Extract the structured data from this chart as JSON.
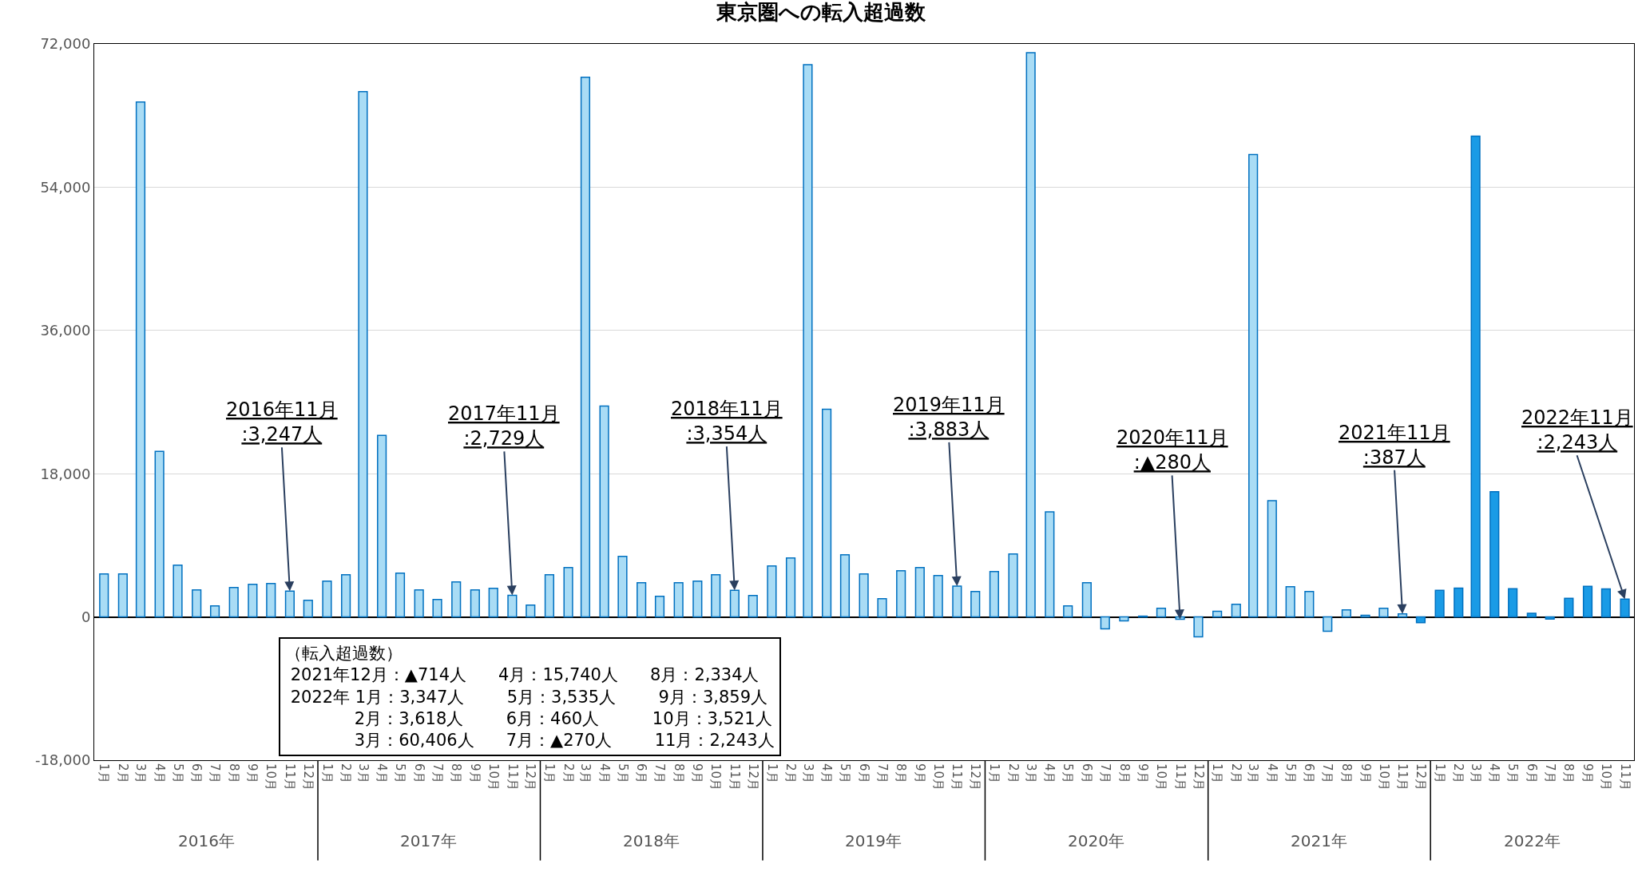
{
  "chart_data": {
    "type": "bar",
    "title": "東京圏への転入超過数",
    "x": [
      "2016-01",
      "2016-02",
      "2016-03",
      "2016-04",
      "2016-05",
      "2016-06",
      "2016-07",
      "2016-08",
      "2016-09",
      "2016-10",
      "2016-11",
      "2016-12",
      "2017-01",
      "2017-02",
      "2017-03",
      "2017-04",
      "2017-05",
      "2017-06",
      "2017-07",
      "2017-08",
      "2017-09",
      "2017-10",
      "2017-11",
      "2017-12",
      "2018-01",
      "2018-02",
      "2018-03",
      "2018-04",
      "2018-05",
      "2018-06",
      "2018-07",
      "2018-08",
      "2018-09",
      "2018-10",
      "2018-11",
      "2018-12",
      "2019-01",
      "2019-02",
      "2019-03",
      "2019-04",
      "2019-05",
      "2019-06",
      "2019-07",
      "2019-08",
      "2019-09",
      "2019-10",
      "2019-11",
      "2019-12",
      "2020-01",
      "2020-02",
      "2020-03",
      "2020-04",
      "2020-05",
      "2020-06",
      "2020-07",
      "2020-08",
      "2020-09",
      "2020-10",
      "2020-11",
      "2020-12",
      "2021-01",
      "2021-02",
      "2021-03",
      "2021-04",
      "2021-05",
      "2021-06",
      "2021-07",
      "2021-08",
      "2021-09",
      "2021-10",
      "2021-11",
      "2021-12",
      "2022-01",
      "2022-02",
      "2022-03",
      "2022-04",
      "2022-05",
      "2022-06",
      "2022-07",
      "2022-08",
      "2022-09",
      "2022-10",
      "2022-11"
    ],
    "values": [
      5400,
      5400,
      64700,
      20800,
      6500,
      3400,
      1400,
      3700,
      4100,
      4200,
      3247,
      2100,
      4500,
      5300,
      66000,
      22800,
      5500,
      3400,
      2200,
      4400,
      3400,
      3600,
      2729,
      1500,
      5300,
      6200,
      67800,
      26500,
      7600,
      4300,
      2600,
      4300,
      4500,
      5300,
      3354,
      2700,
      6400,
      7400,
      69400,
      26100,
      7800,
      5400,
      2300,
      5800,
      6200,
      5200,
      3883,
      3200,
      5700,
      7900,
      70900,
      13200,
      1400,
      4300,
      -1500,
      -500,
      100,
      1100,
      -280,
      -2500,
      700,
      1600,
      58100,
      14600,
      3800,
      3200,
      -1800,
      900,
      200,
      1100,
      387,
      -714,
      3347,
      3618,
      60406,
      15740,
      3535,
      460,
      -270,
      2334,
      3859,
      3521,
      2243
    ],
    "colors": [
      "#a9dcf5",
      "#a9dcf5",
      "#a9dcf5",
      "#a9dcf5",
      "#a9dcf5",
      "#a9dcf5",
      "#a9dcf5",
      "#a9dcf5",
      "#a9dcf5",
      "#a9dcf5",
      "#a9dcf5",
      "#a9dcf5",
      "#a9dcf5",
      "#a9dcf5",
      "#a9dcf5",
      "#a9dcf5",
      "#a9dcf5",
      "#a9dcf5",
      "#a9dcf5",
      "#a9dcf5",
      "#a9dcf5",
      "#a9dcf5",
      "#a9dcf5",
      "#a9dcf5",
      "#a9dcf5",
      "#a9dcf5",
      "#a9dcf5",
      "#a9dcf5",
      "#a9dcf5",
      "#a9dcf5",
      "#a9dcf5",
      "#a9dcf5",
      "#a9dcf5",
      "#a9dcf5",
      "#a9dcf5",
      "#a9dcf5",
      "#a9dcf5",
      "#a9dcf5",
      "#a9dcf5",
      "#a9dcf5",
      "#a9dcf5",
      "#a9dcf5",
      "#a9dcf5",
      "#a9dcf5",
      "#a9dcf5",
      "#a9dcf5",
      "#a9dcf5",
      "#a9dcf5",
      "#a9dcf5",
      "#a9dcf5",
      "#a9dcf5",
      "#a9dcf5",
      "#a9dcf5",
      "#a9dcf5",
      "#a9dcf5",
      "#a9dcf5",
      "#a9dcf5",
      "#a9dcf5",
      "#a9dcf5",
      "#a9dcf5",
      "#a9dcf5",
      "#a9dcf5",
      "#a9dcf5",
      "#a9dcf5",
      "#a9dcf5",
      "#a9dcf5",
      "#a9dcf5",
      "#a9dcf5",
      "#a9dcf5",
      "#a9dcf5",
      "#a9dcf5",
      "#1a9be6",
      "#1a9be6",
      "#1a9be6",
      "#1a9be6",
      "#1a9be6",
      "#1a9be6",
      "#1a9be6",
      "#1a9be6",
      "#1a9be6",
      "#1a9be6",
      "#1a9be6",
      "#1a9be6"
    ],
    "xlim": [
      "2015-12-16",
      "2022-11-16"
    ],
    "xticks": [
      {
        "value": "2016-01",
        "label": "1月"
      },
      {
        "value": "2016-02",
        "label": "2月"
      },
      {
        "value": "2016-03",
        "label": "3月"
      },
      {
        "value": "2016-04",
        "label": "4月"
      },
      {
        "value": "2016-05",
        "label": "5月"
      },
      {
        "value": "2016-06",
        "label": "6月"
      },
      {
        "value": "2016-07",
        "label": "7月"
      },
      {
        "value": "2016-08",
        "label": "8月"
      },
      {
        "value": "2016-09",
        "label": "9月"
      },
      {
        "value": "2016-10",
        "label": "10月"
      },
      {
        "value": "2016-11",
        "label": "11月"
      },
      {
        "value": "2016-12",
        "label": "12月"
      },
      {
        "value": "2017-01",
        "label": "1月"
      },
      {
        "value": "2017-02",
        "label": "2月"
      },
      {
        "value": "2017-03",
        "label": "3月"
      },
      {
        "value": "2017-04",
        "label": "4月"
      },
      {
        "value": "2017-05",
        "label": "5月"
      },
      {
        "value": "2017-06",
        "label": "6月"
      },
      {
        "value": "2017-07",
        "label": "7月"
      },
      {
        "value": "2017-08",
        "label": "8月"
      },
      {
        "value": "2017-09",
        "label": "9月"
      },
      {
        "value": "2017-10",
        "label": "10月"
      },
      {
        "value": "2017-11",
        "label": "11月"
      },
      {
        "value": "2017-12",
        "label": "12月"
      },
      {
        "value": "2018-01",
        "label": "1月"
      },
      {
        "value": "2018-02",
        "label": "2月"
      },
      {
        "value": "2018-03",
        "label": "3月"
      },
      {
        "value": "2018-04",
        "label": "4月"
      },
      {
        "value": "2018-05",
        "label": "5月"
      },
      {
        "value": "2018-06",
        "label": "6月"
      },
      {
        "value": "2018-07",
        "label": "7月"
      },
      {
        "value": "2018-08",
        "label": "8月"
      },
      {
        "value": "2018-09",
        "label": "9月"
      },
      {
        "value": "2018-10",
        "label": "10月"
      },
      {
        "value": "2018-11",
        "label": "11月"
      },
      {
        "value": "2018-12",
        "label": "12月"
      },
      {
        "value": "2019-01",
        "label": "1月"
      },
      {
        "value": "2019-02",
        "label": "2月"
      },
      {
        "value": "2019-03",
        "label": "3月"
      },
      {
        "value": "2019-04",
        "label": "4月"
      },
      {
        "value": "2019-05",
        "label": "5月"
      },
      {
        "value": "2019-06",
        "label": "6月"
      },
      {
        "value": "2019-07",
        "label": "7月"
      },
      {
        "value": "2019-08",
        "label": "8月"
      },
      {
        "value": "2019-09",
        "label": "9月"
      },
      {
        "value": "2019-10",
        "label": "10月"
      },
      {
        "value": "2019-11",
        "label": "11月"
      },
      {
        "value": "2019-12",
        "label": "12月"
      },
      {
        "value": "2020-01",
        "label": "1月"
      },
      {
        "value": "2020-02",
        "label": "2月"
      },
      {
        "value": "2020-03",
        "label": "3月"
      },
      {
        "value": "2020-04",
        "label": "4月"
      },
      {
        "value": "2020-05",
        "label": "5月"
      },
      {
        "value": "2020-06",
        "label": "6月"
      },
      {
        "value": "2020-07",
        "label": "7月"
      },
      {
        "value": "2020-08",
        "label": "8月"
      },
      {
        "value": "2020-09",
        "label": "9月"
      },
      {
        "value": "2020-10",
        "label": "10月"
      },
      {
        "value": "2020-11",
        "label": "11月"
      },
      {
        "value": "2020-12",
        "label": "12月"
      },
      {
        "value": "2021-01",
        "label": "1月"
      },
      {
        "value": "2021-02",
        "label": "2月"
      },
      {
        "value": "2021-03",
        "label": "3月"
      },
      {
        "value": "2021-04",
        "label": "4月"
      },
      {
        "value": "2021-05",
        "label": "5月"
      },
      {
        "value": "2021-06",
        "label": "6月"
      },
      {
        "value": "2021-07",
        "label": "7月"
      },
      {
        "value": "2021-08",
        "label": "8月"
      },
      {
        "value": "2021-09",
        "label": "9月"
      },
      {
        "value": "2021-10",
        "label": "10月"
      },
      {
        "value": "2021-11",
        "label": "11月"
      },
      {
        "value": "2021-12",
        "label": "12月"
      },
      {
        "value": "2022-01",
        "label": "1月"
      },
      {
        "value": "2022-02",
        "label": "2月"
      },
      {
        "value": "2022-03",
        "label": "3月"
      },
      {
        "value": "2022-04",
        "label": "4月"
      },
      {
        "value": "2022-05",
        "label": "5月"
      },
      {
        "value": "2022-06",
        "label": "6月"
      },
      {
        "value": "2022-07",
        "label": "7月"
      },
      {
        "value": "2022-08",
        "label": "8月"
      },
      {
        "value": "2022-09",
        "label": "9月"
      },
      {
        "value": "2022-10",
        "label": "10月"
      },
      {
        "value": "2022-11",
        "label": "11月"
      }
    ],
    "ylim": [
      -18000,
      72000
    ],
    "yticks": [
      {
        "value": -18000,
        "label": "-18,000"
      },
      {
        "value": 0,
        "label": "0"
      },
      {
        "value": 18000,
        "label": "18,000"
      },
      {
        "value": 36000,
        "label": "36,000"
      },
      {
        "value": 54000,
        "label": "54,000"
      },
      {
        "value": 72000,
        "label": "72,000"
      }
    ],
    "grid": "y",
    "annotations": [
      "2016年",
      "2017年",
      "2018年",
      "2019年",
      "2020年",
      "2021年",
      "2022年",
      {
        "text": "2016年11月\n:3,247人",
        "x": "2016-11",
        "y": 3247
      },
      {
        "text": "2017年11月\n:2,729人",
        "x": "2017-11",
        "y": 2729
      },
      {
        "text": "2018年11月\n:3,354人",
        "x": "2018-11",
        "y": 3354
      },
      {
        "text": "2019年11月\n:3,883人",
        "x": "2019-11",
        "y": 3883
      },
      {
        "text": "2020年11月\n:▲280人",
        "x": "2020-11",
        "y": -280
      },
      {
        "text": "2021年11月\n:387人",
        "x": "2021-11",
        "y": 387
      },
      {
        "text": "2022年11月\n:2,243人",
        "x": "2022-11",
        "y": 2243
      },
      "（転入超過数）\n 2021年12月：▲714人      4月：15,740人      8月：2,334人\n 2022年 1月：3,347人        5月：3,535人        9月：3,859人\n             2月：3,618人        6月：460人          10月：3,521人\n             3月：60,406人      7月：▲270人        11月：2,243人"
    ]
  }
}
